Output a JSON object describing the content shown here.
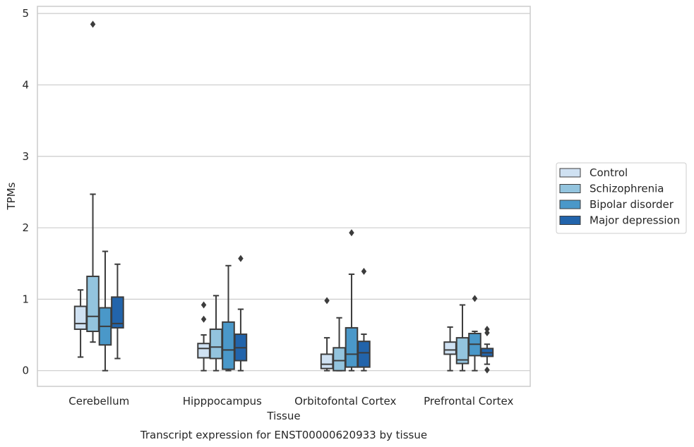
{
  "chart_data": {
    "type": "box",
    "title": "",
    "caption": "Transcript expression for ENST00000620933 by tissue",
    "xlabel": "Tissue",
    "ylabel": "TPMs",
    "ylim": [
      -0.22,
      5.1
    ],
    "yticks": [
      0,
      1,
      2,
      3,
      4,
      5
    ],
    "grid": true,
    "legend_position": "right",
    "categories": [
      "Cerebellum",
      "Hipppocampus",
      "Orbitofontal Cortex",
      "Prefrontal Cortex"
    ],
    "series": [
      {
        "name": "Control",
        "color": "#cfe1f2",
        "boxes": [
          {
            "whislo": 0.19,
            "q1": 0.58,
            "med": 0.66,
            "q3": 0.9,
            "whishi": 1.13,
            "fliers": []
          },
          {
            "whislo": 0.0,
            "q1": 0.18,
            "med": 0.31,
            "q3": 0.38,
            "whishi": 0.5,
            "fliers": [
              0.72,
              0.92
            ]
          },
          {
            "whislo": 0.0,
            "q1": 0.03,
            "med": 0.09,
            "q3": 0.23,
            "whishi": 0.46,
            "fliers": [
              0.98
            ]
          },
          {
            "whislo": 0.0,
            "q1": 0.23,
            "med": 0.29,
            "q3": 0.4,
            "whishi": 0.61,
            "fliers": []
          }
        ]
      },
      {
        "name": "Schizophrenia",
        "color": "#93c4de",
        "boxes": [
          {
            "whislo": 0.4,
            "q1": 0.55,
            "med": 0.76,
            "q3": 1.32,
            "whishi": 2.47,
            "fliers": [
              4.85
            ]
          },
          {
            "whislo": 0.0,
            "q1": 0.17,
            "med": 0.33,
            "q3": 0.58,
            "whishi": 1.05,
            "fliers": []
          },
          {
            "whislo": 0.0,
            "q1": 0.0,
            "med": 0.14,
            "q3": 0.32,
            "whishi": 0.74,
            "fliers": []
          },
          {
            "whislo": 0.0,
            "q1": 0.1,
            "med": 0.15,
            "q3": 0.46,
            "whishi": 0.92,
            "fliers": []
          }
        ]
      },
      {
        "name": "Bipolar disorder",
        "color": "#4a98c9",
        "boxes": [
          {
            "whislo": 0.0,
            "q1": 0.36,
            "med": 0.62,
            "q3": 0.88,
            "whishi": 1.67,
            "fliers": []
          },
          {
            "whislo": 0.0,
            "q1": 0.02,
            "med": 0.29,
            "q3": 0.68,
            "whishi": 1.47,
            "fliers": []
          },
          {
            "whislo": 0.0,
            "q1": 0.05,
            "med": 0.23,
            "q3": 0.6,
            "whishi": 1.35,
            "fliers": [
              1.93
            ]
          },
          {
            "whislo": 0.0,
            "q1": 0.21,
            "med": 0.37,
            "q3": 0.52,
            "whishi": 0.55,
            "fliers": [
              1.01
            ]
          }
        ]
      },
      {
        "name": "Major depression",
        "color": "#2264ab",
        "boxes": [
          {
            "whislo": 0.17,
            "q1": 0.6,
            "med": 0.66,
            "q3": 1.03,
            "whishi": 1.49,
            "fliers": []
          },
          {
            "whislo": 0.0,
            "q1": 0.14,
            "med": 0.32,
            "q3": 0.51,
            "whishi": 0.86,
            "fliers": [
              1.57
            ]
          },
          {
            "whislo": 0.0,
            "q1": 0.05,
            "med": 0.25,
            "q3": 0.41,
            "whishi": 0.51,
            "fliers": [
              1.39
            ]
          },
          {
            "whislo": 0.09,
            "q1": 0.2,
            "med": 0.25,
            "q3": 0.31,
            "whishi": 0.37,
            "fliers": [
              0.53,
              0.58,
              0.01
            ]
          }
        ]
      }
    ]
  }
}
